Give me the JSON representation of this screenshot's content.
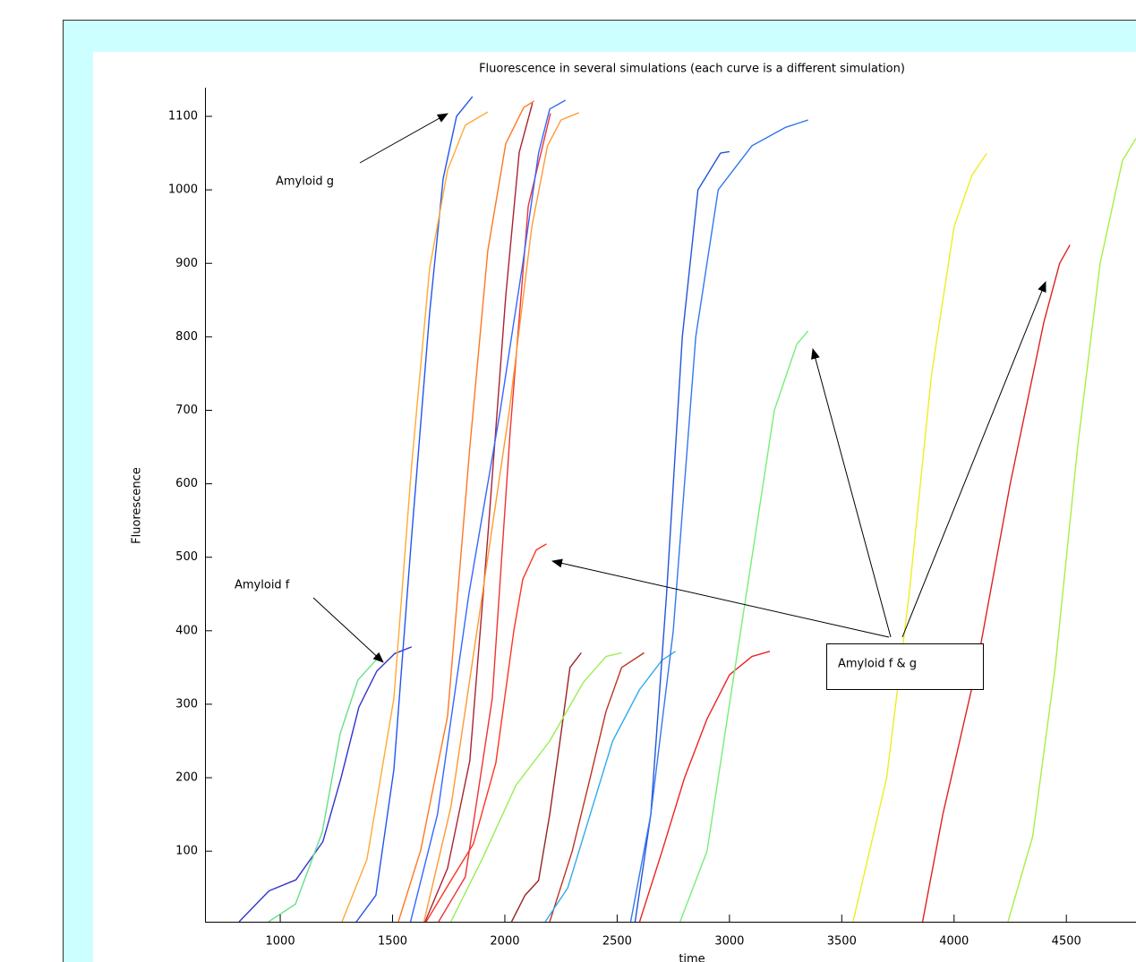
{
  "chart_data": {
    "type": "line",
    "title": "Fluorescence in several simulations (each curve is a different simulation)",
    "xlabel": "time",
    "ylabel": "Fluorescence",
    "xlim": [
      665,
      4810
    ],
    "ylim": [
      4,
      1139
    ],
    "xticks": [
      1000,
      1500,
      2000,
      2500,
      3000,
      3500,
      4000,
      4500
    ],
    "yticks": [
      100,
      200,
      300,
      400,
      500,
      600,
      700,
      800,
      900,
      1000,
      1100
    ],
    "annotations": [
      "Amyloid g",
      "Amyloid f",
      "Amyloid f & g"
    ],
    "series": [
      {
        "color": "#3333cc",
        "x": [
          817,
          950,
          1070,
          1190,
          1270,
          1350,
          1430,
          1510,
          1585
        ],
        "values": [
          4,
          46,
          61,
          113,
          199,
          296,
          345,
          369,
          378
        ]
      },
      {
        "color": "#66e08a",
        "x": [
          948,
          1068,
          1187,
          1267,
          1346,
          1426
        ],
        "values": [
          4,
          28,
          126,
          260,
          333,
          360
        ]
      },
      {
        "color": "#2255ee",
        "x": [
          1339,
          1426,
          1506,
          1585,
          1665,
          1725,
          1785,
          1856
        ],
        "values": [
          4,
          40,
          211,
          528,
          832,
          1015,
          1100,
          1127
        ]
      },
      {
        "color": "#ffaa33",
        "x": [
          1275,
          1386,
          1506,
          1585,
          1665,
          1745,
          1824,
          1924
        ],
        "values": [
          4,
          89,
          308,
          625,
          893,
          1027,
          1088,
          1106
        ]
      },
      {
        "color": "#ff7722",
        "x": [
          1526,
          1625,
          1745,
          1844,
          1924,
          2004,
          2084,
          2131
        ],
        "values": [
          4,
          101,
          284,
          649,
          917,
          1063,
          1112,
          1121
        ]
      },
      {
        "color": "#aa2233",
        "x": [
          1645,
          1745,
          1844,
          1924,
          2004,
          2064,
          2123
        ],
        "values": [
          4,
          77,
          223,
          528,
          856,
          1051,
          1118
        ]
      },
      {
        "color": "#ee3333",
        "x": [
          1705,
          1824,
          1944,
          2024,
          2104,
          2203
        ],
        "values": [
          4,
          65,
          308,
          673,
          978,
          1104
        ]
      },
      {
        "color": "#3366ff",
        "x": [
          1580,
          1700,
          1840,
          1980,
          2080,
          2150,
          2200,
          2270
        ],
        "values": [
          4,
          150,
          450,
          700,
          900,
          1050,
          1110,
          1122
        ]
      },
      {
        "color": "#ff9933",
        "x": [
          1640,
          1760,
          1900,
          2020,
          2120,
          2190,
          2250,
          2330
        ],
        "values": [
          4,
          160,
          450,
          700,
          950,
          1060,
          1095,
          1105
        ]
      },
      {
        "color": "#ff3322",
        "x": [
          1650,
          1760,
          1860,
          1960,
          2040,
          2080,
          2140,
          2185
        ],
        "values": [
          4,
          60,
          110,
          220,
          400,
          470,
          510,
          518
        ]
      },
      {
        "color": "#992222",
        "x": [
          2030,
          2090,
          2150,
          2200,
          2250,
          2290,
          2340
        ],
        "values": [
          4,
          40,
          60,
          150,
          260,
          350,
          370
        ]
      },
      {
        "color": "#99ee55",
        "x": [
          1760,
          1900,
          2050,
          2200,
          2350,
          2450,
          2520
        ],
        "values": [
          4,
          90,
          190,
          250,
          330,
          365,
          370
        ]
      },
      {
        "color": "#bb3322",
        "x": [
          2200,
          2300,
          2380,
          2450,
          2520,
          2620
        ],
        "values": [
          4,
          100,
          200,
          290,
          350,
          370
        ]
      },
      {
        "color": "#33aaee",
        "x": [
          2180,
          2280,
          2380,
          2480,
          2600,
          2700,
          2760
        ],
        "values": [
          4,
          50,
          150,
          250,
          320,
          360,
          372
        ]
      },
      {
        "color": "#2255dd",
        "x": [
          2580,
          2650,
          2720,
          2790,
          2860,
          2960,
          3000
        ],
        "values": [
          4,
          150,
          450,
          800,
          1000,
          1050,
          1052
        ]
      },
      {
        "color": "#3377ee",
        "x": [
          2560,
          2650,
          2750,
          2850,
          2950,
          3100,
          3250,
          3350
        ],
        "values": [
          4,
          150,
          400,
          800,
          1000,
          1060,
          1085,
          1095
        ]
      },
      {
        "color": "#ee2222",
        "x": [
          2600,
          2700,
          2800,
          2900,
          3000,
          3100,
          3180
        ],
        "values": [
          4,
          100,
          200,
          280,
          340,
          365,
          372
        ]
      },
      {
        "color": "#77ee77",
        "x": [
          2780,
          2900,
          3000,
          3100,
          3200,
          3300,
          3350
        ],
        "values": [
          4,
          100,
          300,
          500,
          700,
          790,
          808
        ]
      },
      {
        "color": "#eeee22",
        "x": [
          3550,
          3700,
          3800,
          3900,
          4000,
          4080,
          4146
        ],
        "values": [
          4,
          200,
          450,
          750,
          950,
          1020,
          1050
        ]
      },
      {
        "color": "#dd2222",
        "x": [
          3860,
          3950,
          4100,
          4250,
          4400,
          4470,
          4516
        ],
        "values": [
          4,
          150,
          350,
          600,
          820,
          900,
          925
        ]
      },
      {
        "color": "#aaee44",
        "x": [
          4240,
          4350,
          4450,
          4550,
          4650,
          4750,
          4810
        ],
        "values": [
          4,
          120,
          350,
          650,
          900,
          1040,
          1070
        ]
      }
    ]
  }
}
